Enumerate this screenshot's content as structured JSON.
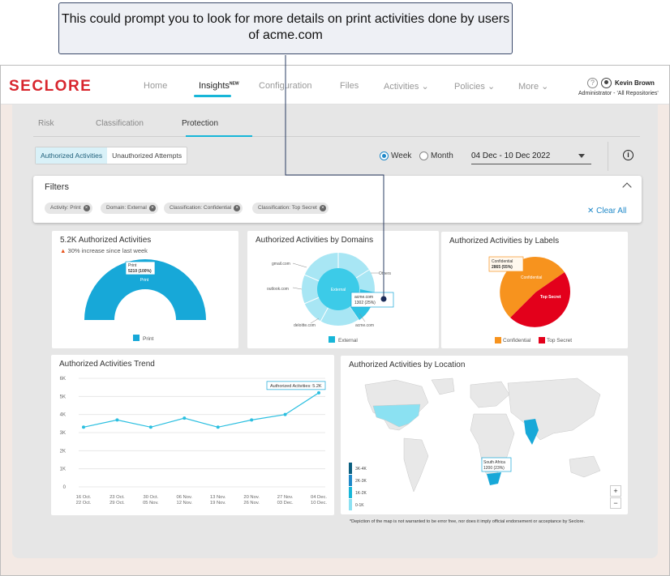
{
  "callout": {
    "text": "This could prompt you to look for more details on print activities done by users of acme.com"
  },
  "header": {
    "logo": "SECLORE",
    "nav": [
      {
        "label": "Home"
      },
      {
        "label": "Insights",
        "badge": "NEW"
      },
      {
        "label": "Configuration"
      },
      {
        "label": "Files"
      },
      {
        "label": "Activities ⌄"
      },
      {
        "label": "Policies ⌄"
      },
      {
        "label": "More ⌄"
      }
    ],
    "user_name": "Kevin Brown",
    "user_role": "Administrator - 'All Repositories'"
  },
  "sub_tabs": [
    "Risk",
    "Classification",
    "Protection"
  ],
  "segment": {
    "authorized": "Authorized Activities",
    "unauthorized": "Unauthorized Attempts"
  },
  "period": {
    "week": "Week",
    "month": "Month",
    "selected": "Week"
  },
  "date_range": "04 Dec - 10 Dec 2022",
  "filters": {
    "title": "Filters",
    "chips": [
      "Activity: Print",
      "Domain: External",
      "Classification: Confidential",
      "Classification: Top Secret"
    ],
    "clear_all": "Clear All"
  },
  "cards": {
    "gauge": {
      "title": "5.2K Authorized Activities",
      "subtitle": "30% increase since last week",
      "inner_label": "Print",
      "tooltip_line1": "Print",
      "tooltip_line2": "5210 (100%)",
      "legend": "Print"
    },
    "domains": {
      "title": "Authorized Activities by Domains",
      "center_label": "External",
      "labels": [
        "gmail.com",
        "outlook.com",
        "deloitte.com",
        "acme.com",
        "Others"
      ],
      "tooltip_line1": "acme.com",
      "tooltip_line2": "1302 (25%)",
      "legend": "External"
    },
    "labels": {
      "title": "Authorized Activities by Labels",
      "tooltip_line1": "Confidential",
      "tooltip_line2": "2865 (55%)",
      "slice_confidential": "Confidential",
      "slice_topsecret": "Top Secret",
      "legend": [
        "Confidential",
        "Top Secret"
      ]
    },
    "trend": {
      "title": "Authorized Activities Trend",
      "tooltip": "Authorized Activities: 5.2K"
    },
    "location": {
      "title": "Authorized Activities by Location",
      "tooltip_line1": "South Africa",
      "tooltip_line2": "1200 (23%)",
      "scale": [
        "3K-4K",
        "2K-3K",
        "1K-2K",
        "0-1K"
      ],
      "zoom_in": "+",
      "zoom_out": "−"
    }
  },
  "disclaimer": "*Depiction of the map is not warranted to be error free, nor does it imply official endorsement or acceptance by Seclore.",
  "colors": {
    "accent": "#17b6d8",
    "brand": "#d8262e",
    "orange": "#f7931e",
    "red": "#e3001b"
  },
  "chart_data": [
    {
      "type": "pie",
      "title": "5.2K Authorized Activities",
      "labels": [
        "Print"
      ],
      "values": [
        5210
      ],
      "percent": [
        100
      ]
    },
    {
      "type": "pie",
      "title": "Authorized Activities by Domains",
      "labels": [
        "External"
      ],
      "segments": [
        "gmail.com",
        "outlook.com",
        "deloitte.com",
        "acme.com",
        "Others"
      ],
      "highlight": {
        "label": "acme.com",
        "value": 1302,
        "percent": 25
      }
    },
    {
      "type": "pie",
      "title": "Authorized Activities by Labels",
      "labels": [
        "Confidential",
        "Top Secret"
      ],
      "values": [
        2865,
        2345
      ],
      "percent": [
        55,
        45
      ]
    },
    {
      "type": "line",
      "title": "Authorized Activities Trend",
      "categories": [
        "16 Oct. 22 Oct.",
        "23 Oct. 29 Oct.",
        "30 Oct. 05 Nov.",
        "06 Nov. 12 Nov.",
        "13 Nov. 19 Nov.",
        "20 Nov. 26 Nov.",
        "27 Nov. 03 Dec.",
        "04 Dec. 10 Dec."
      ],
      "cat_top": [
        "16 Oct.",
        "23 Oct.",
        "30 Oct.",
        "06 Nov.",
        "13 Nov.",
        "20 Nov.",
        "27 Nov.",
        "04 Dec."
      ],
      "cat_bottom": [
        "22 Oct.",
        "29 Oct.",
        "05 Nov.",
        "12 Nov.",
        "19 Nov.",
        "26 Nov.",
        "03 Dec.",
        "10 Dec."
      ],
      "values": [
        3300,
        3700,
        3300,
        3800,
        3300,
        3700,
        4000,
        5200
      ],
      "yticks": [
        "0",
        "1K",
        "2K",
        "3K",
        "4K",
        "5K",
        "6K"
      ],
      "ylim": [
        0,
        6000
      ],
      "grid": true
    }
  ]
}
